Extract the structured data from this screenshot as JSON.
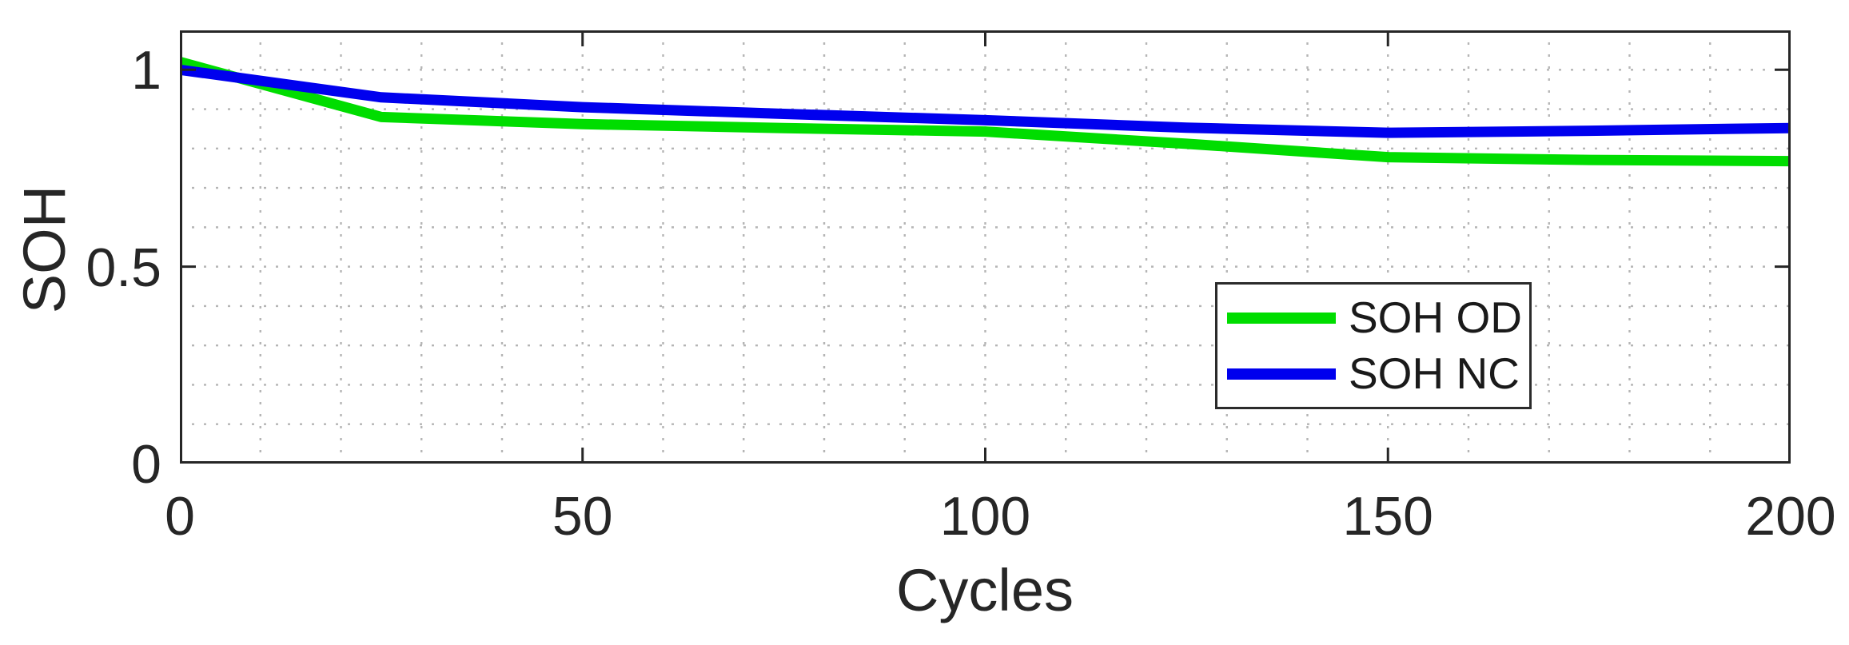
{
  "figure": {
    "background": "#ffffff"
  },
  "axes": {
    "box_color": "#262626",
    "grid_color": "#b5b5b5",
    "tick_label_color": "#262626",
    "grid_style": "dotted",
    "tick_direction": "in"
  },
  "chart_data": {
    "type": "line",
    "title": "",
    "xlabel": "Cycles",
    "ylabel": "SOH",
    "xlim": [
      0,
      200
    ],
    "ylim": [
      0,
      1.1
    ],
    "x_ticks": [
      0,
      50,
      100,
      150,
      200
    ],
    "x_tick_labels": [
      "0",
      "50",
      "100",
      "150",
      "200"
    ],
    "y_ticks": [
      0,
      0.5,
      1
    ],
    "y_tick_labels": [
      "0",
      "0.5",
      "1"
    ],
    "minor_grid_step_x": 10,
    "minor_grid_step_y": 0.1,
    "grid": "on",
    "legend_position": "middle-right",
    "x": [
      0,
      25,
      50,
      75,
      100,
      125,
      150,
      175,
      200
    ],
    "series": [
      {
        "name": "SOH OD",
        "color": "#00dd00",
        "values": [
          1.02,
          0.88,
          0.862,
          0.852,
          0.843,
          0.812,
          0.778,
          0.771,
          0.768
        ]
      },
      {
        "name": "SOH NC",
        "color": "#0000ee",
        "values": [
          1.0,
          0.93,
          0.905,
          0.888,
          0.872,
          0.853,
          0.84,
          0.845,
          0.852
        ]
      }
    ]
  }
}
